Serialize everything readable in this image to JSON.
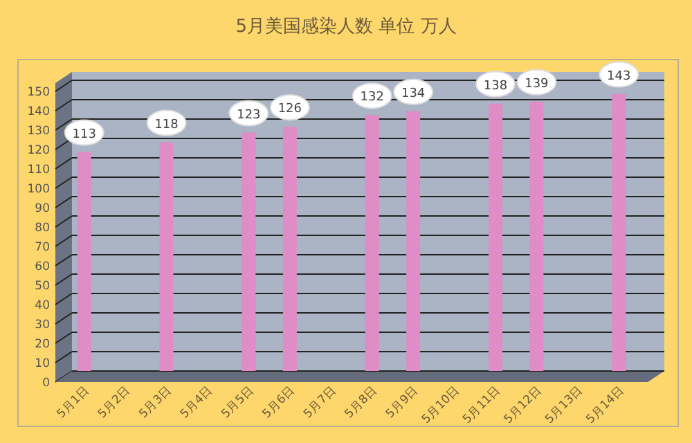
{
  "chart_data": {
    "type": "bar",
    "title": "5月美国感染人数 单位 万人",
    "categories": [
      "5月1日",
      "5月2日",
      "5月3日",
      "5月4日",
      "5月5日",
      "5月6日",
      "5月7日",
      "5月8日",
      "5月9日",
      "5月10日",
      "5月11日",
      "5月12日",
      "5月13日",
      "5月14日"
    ],
    "values": [
      113,
      null,
      118,
      null,
      123,
      126,
      null,
      132,
      134,
      null,
      138,
      139,
      null,
      143
    ],
    "color": "#e08cc6",
    "ylim": [
      0,
      150
    ],
    "yticks": [
      0,
      10,
      20,
      30,
      40,
      50,
      60,
      70,
      80,
      90,
      100,
      110,
      120,
      130,
      140,
      150
    ],
    "grid": "y",
    "data_labels": true
  }
}
